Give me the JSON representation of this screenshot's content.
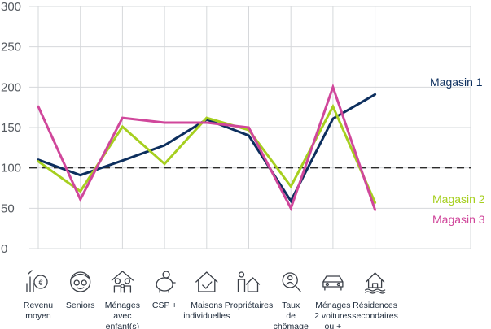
{
  "chart_data": {
    "type": "line",
    "categories": [
      [
        "Revenu",
        "moyen"
      ],
      [
        "Seniors"
      ],
      [
        "Ménages",
        "avec",
        "enfant(s)"
      ],
      [
        "CSP +"
      ],
      [
        "Maisons",
        "individuelles"
      ],
      [
        "Propriétaires"
      ],
      [
        "Taux",
        "de",
        "chômage"
      ],
      [
        "Ménages",
        "2 voitures",
        "ou +"
      ],
      [
        "Résidences",
        "secondaires"
      ]
    ],
    "category_icons": [
      "money-bag-icon",
      "senior-face-icon",
      "family-icon",
      "piggy-bank-icon",
      "house-check-icon",
      "owner-house-icon",
      "search-person-icon",
      "car-icon",
      "holiday-home-icon"
    ],
    "ylim": [
      0,
      300
    ],
    "yticks": [
      0,
      50,
      100,
      150,
      200,
      250,
      300
    ],
    "reference_line": 100,
    "grid": true,
    "series": [
      {
        "name": "Magasin 1",
        "color": "#0d2f5e",
        "values": [
          110,
          91,
          109,
          128,
          160,
          140,
          59,
          161,
          191
        ]
      },
      {
        "name": "Magasin 2",
        "color": "#a6cf1f",
        "values": [
          108,
          71,
          151,
          105,
          162,
          147,
          77,
          176,
          57
        ]
      },
      {
        "name": "Magasin 3",
        "color": "#d0479b",
        "values": [
          176,
          61,
          162,
          156,
          156,
          150,
          50,
          200,
          48
        ]
      }
    ],
    "legend_placement": "right-end-of-lines"
  }
}
